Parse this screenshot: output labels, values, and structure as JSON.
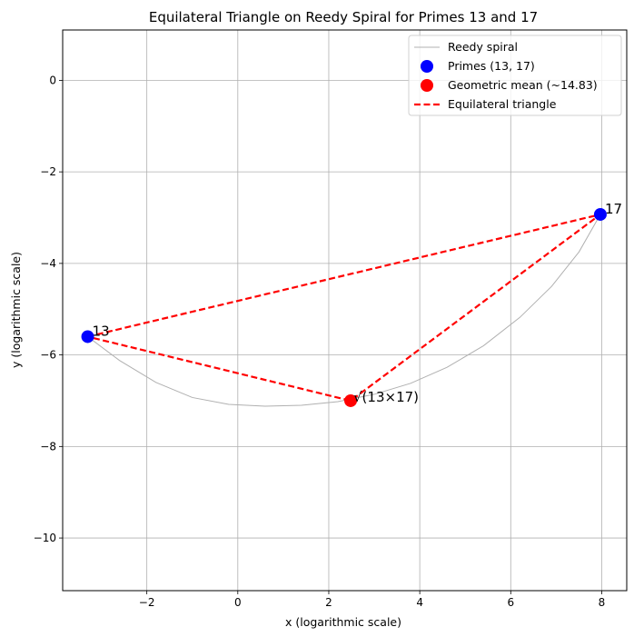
{
  "chart_data": {
    "type": "scatter",
    "title": "Equilateral Triangle on Reedy Spiral for Primes 13 and 17",
    "xlabel": "x (logarithmic scale)",
    "ylabel": "y (logarithmic scale)",
    "xlim": [
      -3.85,
      8.55
    ],
    "ylim": [
      -11.15,
      1.1
    ],
    "grid": true,
    "x_ticks": [
      -2,
      0,
      2,
      4,
      6,
      8
    ],
    "x_tick_labels": [
      "−2",
      "0",
      "2",
      "4",
      "6",
      "8"
    ],
    "y_ticks": [
      0,
      -2,
      -4,
      -6,
      -8,
      -10
    ],
    "y_tick_labels": [
      "0",
      "−2",
      "−4",
      "−6",
      "−8",
      "−10"
    ],
    "legend_position": "top-right",
    "series": [
      {
        "name": "Reedy spiral",
        "kind": "line",
        "color": "#b0b0b0",
        "points": [
          [
            -3.3,
            -5.6
          ],
          [
            -2.6,
            -6.12
          ],
          [
            -1.8,
            -6.6
          ],
          [
            -1.0,
            -6.93
          ],
          [
            -0.2,
            -7.08
          ],
          [
            0.6,
            -7.12
          ],
          [
            1.4,
            -7.1
          ],
          [
            2.2,
            -7.02
          ],
          [
            3.0,
            -6.86
          ],
          [
            3.8,
            -6.62
          ],
          [
            4.6,
            -6.27
          ],
          [
            5.4,
            -5.8
          ],
          [
            6.2,
            -5.18
          ],
          [
            6.9,
            -4.5
          ],
          [
            7.5,
            -3.75
          ],
          [
            7.97,
            -2.93
          ]
        ]
      },
      {
        "name": "Primes (13, 17)",
        "kind": "scatter",
        "color": "#0000ff",
        "points": [
          [
            -3.3,
            -5.6
          ],
          [
            7.97,
            -2.93
          ]
        ],
        "labels": [
          "13",
          "17"
        ]
      },
      {
        "name": "Geometric mean (~14.83)",
        "kind": "scatter",
        "color": "#ff0000",
        "points": [
          [
            2.48,
            -7.0
          ]
        ],
        "labels": [
          "√(13×17)"
        ]
      },
      {
        "name": "Equilateral triangle",
        "kind": "dashed-line",
        "color": "#ff0000",
        "points": [
          [
            -3.3,
            -5.6
          ],
          [
            7.97,
            -2.93
          ],
          [
            2.48,
            -7.0
          ],
          [
            -3.3,
            -5.6
          ]
        ]
      }
    ]
  }
}
